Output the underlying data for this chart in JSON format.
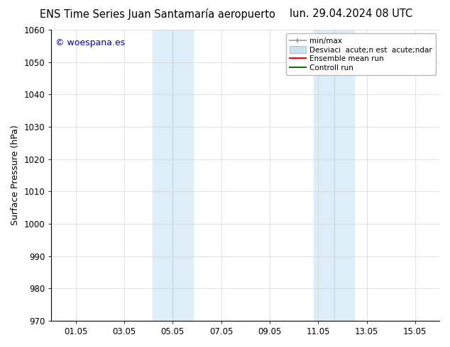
{
  "title_left": "ENS Time Series Juan Santamaría aeropuerto",
  "title_right": "lun. 29.04.2024 08 UTC",
  "ylabel": "Surface Pressure (hPa)",
  "ylim": [
    970,
    1060
  ],
  "yticks": [
    970,
    980,
    990,
    1000,
    1010,
    1020,
    1030,
    1040,
    1050,
    1060
  ],
  "xtick_labels": [
    "01.05",
    "03.05",
    "05.05",
    "07.05",
    "09.05",
    "11.05",
    "13.05",
    "15.05"
  ],
  "xtick_positions": [
    1,
    3,
    5,
    7,
    9,
    11,
    13,
    15
  ],
  "xlim": [
    0,
    16
  ],
  "shaded_bands": [
    {
      "xmin": 4.17,
      "xmax": 5.83,
      "color": "#ddeef9",
      "divider": 5.0
    },
    {
      "xmin": 10.83,
      "xmax": 12.5,
      "color": "#ddeef9",
      "divider": 11.67
    }
  ],
  "divider_color": "#aaccdd",
  "legend_label_minmax": "min/max",
  "legend_label_std": "Desviaci  acute;n est  acute;ndar",
  "legend_label_ens": "Ensemble mean run",
  "legend_label_ctrl": "Controll run",
  "legend_color_minmax": "#999999",
  "legend_color_std": "#cce0ee",
  "legend_color_ens": "#ff0000",
  "legend_color_ctrl": "#007700",
  "watermark_text": "© woespana.es",
  "watermark_color": "#0000cc",
  "background_color": "#ffffff",
  "grid_color": "#cccccc",
  "title_fontsize": 10.5,
  "axis_fontsize": 9,
  "tick_fontsize": 8.5,
  "legend_fontsize": 7.5
}
